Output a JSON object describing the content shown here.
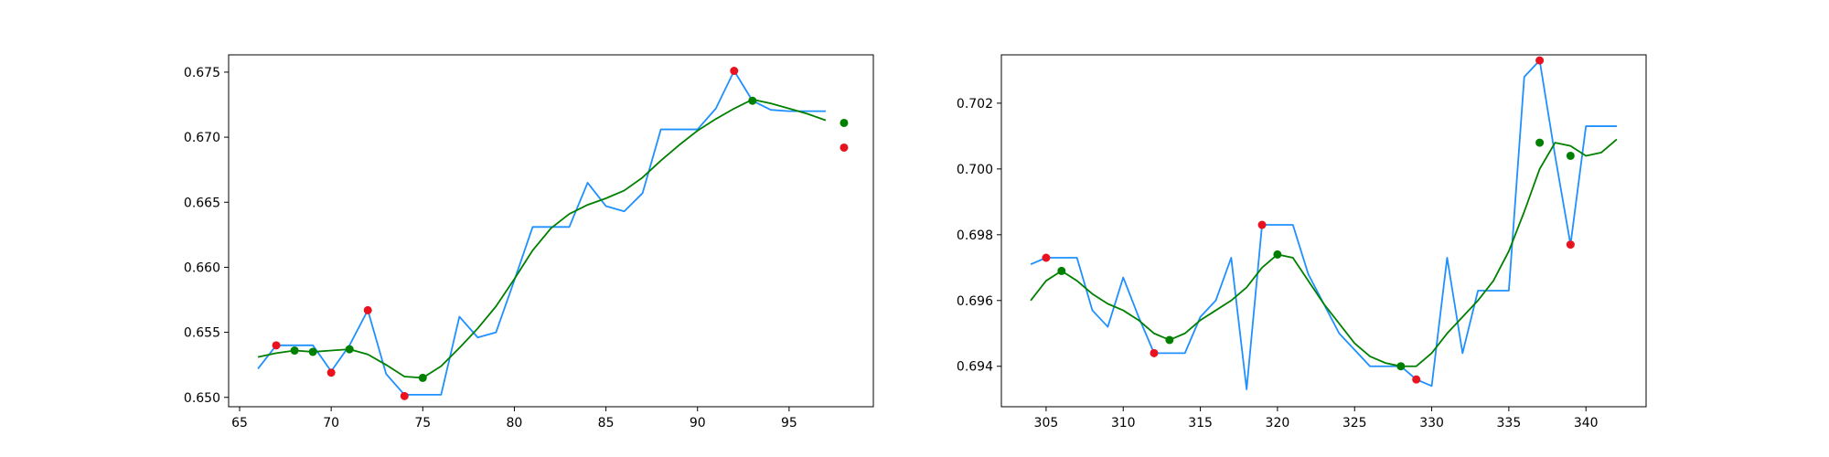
{
  "chart_data": [
    {
      "type": "line",
      "xlim": [
        64.4,
        99.6
      ],
      "ylim": [
        0.64928,
        0.67633
      ],
      "x_ticks": [
        65,
        70,
        75,
        80,
        85,
        90,
        95
      ],
      "y_ticks": [
        0.65,
        0.655,
        0.66,
        0.665,
        0.67,
        0.675
      ],
      "x_tick_labels": [
        "65",
        "70",
        "75",
        "80",
        "85",
        "90",
        "95"
      ],
      "y_tick_labels": [
        "0.650",
        "0.655",
        "0.660",
        "0.665",
        "0.670",
        "0.675"
      ],
      "grid": false,
      "series": [
        {
          "style": "line",
          "color": "#1e90ff",
          "x": [
            66,
            67,
            68,
            69,
            70,
            71,
            72,
            73,
            74,
            75,
            76,
            77,
            78,
            79,
            80,
            81,
            82,
            83,
            84,
            85,
            86,
            87,
            88,
            89,
            90,
            91,
            92,
            93,
            94,
            95,
            96,
            97
          ],
          "y": [
            0.6522,
            0.654,
            0.654,
            0.654,
            0.652,
            0.654,
            0.6567,
            0.6518,
            0.6502,
            0.6502,
            0.6502,
            0.6562,
            0.6546,
            0.655,
            0.659,
            0.6631,
            0.6631,
            0.6631,
            0.6665,
            0.6647,
            0.6643,
            0.6657,
            0.6706,
            0.6706,
            0.6706,
            0.6722,
            0.6751,
            0.6728,
            0.6721,
            0.672,
            0.672,
            0.672
          ]
        },
        {
          "style": "line",
          "color": "#008000",
          "x": [
            66,
            67,
            68,
            69,
            70,
            71,
            72,
            73,
            74,
            75,
            76,
            77,
            78,
            79,
            80,
            81,
            82,
            83,
            84,
            85,
            86,
            87,
            88,
            89,
            90,
            91,
            92,
            93,
            94,
            95,
            96,
            97
          ],
          "y": [
            0.6531,
            0.6534,
            0.6536,
            0.6535,
            0.6536,
            0.6537,
            0.6533,
            0.6525,
            0.6516,
            0.6515,
            0.6524,
            0.6538,
            0.6553,
            0.657,
            0.6591,
            0.6613,
            0.663,
            0.6641,
            0.6648,
            0.6653,
            0.6659,
            0.6669,
            0.6682,
            0.6694,
            0.6705,
            0.6714,
            0.6722,
            0.6729,
            0.6726,
            0.6722,
            0.6718,
            0.6713
          ]
        },
        {
          "style": "scatter",
          "color": "#e8131f",
          "x": [
            67,
            70,
            72,
            74,
            92,
            98
          ],
          "y": [
            0.654,
            0.6519,
            0.6567,
            0.6501,
            0.6751,
            0.6692
          ]
        },
        {
          "style": "scatter",
          "color": "#008000",
          "x": [
            68,
            69,
            71,
            75,
            93,
            98
          ],
          "y": [
            0.6536,
            0.6535,
            0.6537,
            0.6515,
            0.6728,
            0.6711
          ]
        }
      ]
    },
    {
      "type": "line",
      "xlim": [
        302.1,
        343.9
      ],
      "ylim": [
        0.69277,
        0.70347
      ],
      "x_ticks": [
        305,
        310,
        315,
        320,
        325,
        330,
        335,
        340
      ],
      "y_ticks": [
        0.694,
        0.696,
        0.698,
        0.7,
        0.702
      ],
      "x_tick_labels": [
        "305",
        "310",
        "315",
        "320",
        "325",
        "330",
        "335",
        "340"
      ],
      "y_tick_labels": [
        "0.694",
        "0.696",
        "0.698",
        "0.700",
        "0.702"
      ],
      "grid": false,
      "series": [
        {
          "style": "line",
          "color": "#1e90ff",
          "x": [
            304,
            305,
            306,
            307,
            308,
            309,
            310,
            311,
            312,
            313,
            314,
            315,
            316,
            317,
            318,
            319,
            320,
            321,
            322,
            323,
            324,
            325,
            326,
            327,
            328,
            329,
            330,
            331,
            332,
            333,
            334,
            335,
            336,
            337,
            338,
            339,
            340,
            341,
            342
          ],
          "y": [
            0.6971,
            0.6973,
            0.6973,
            0.6973,
            0.6957,
            0.6952,
            0.6967,
            0.6955,
            0.6944,
            0.6944,
            0.6944,
            0.6955,
            0.696,
            0.6973,
            0.6933,
            0.6983,
            0.6983,
            0.6983,
            0.6968,
            0.6959,
            0.695,
            0.6945,
            0.694,
            0.694,
            0.694,
            0.6936,
            0.6934,
            0.6973,
            0.6944,
            0.6963,
            0.6963,
            0.6963,
            0.7028,
            0.7033,
            0.7004,
            0.6977,
            0.7013,
            0.7013,
            0.7013
          ]
        },
        {
          "style": "line",
          "color": "#008000",
          "x": [
            304,
            305,
            306,
            307,
            308,
            309,
            310,
            311,
            312,
            313,
            314,
            315,
            316,
            317,
            318,
            319,
            320,
            321,
            322,
            323,
            324,
            325,
            326,
            327,
            328,
            329,
            330,
            331,
            332,
            333,
            334,
            335,
            336,
            337,
            338,
            339,
            340,
            341,
            342
          ],
          "y": [
            0.696,
            0.6966,
            0.6969,
            0.6966,
            0.6962,
            0.6959,
            0.6957,
            0.6954,
            0.695,
            0.6948,
            0.695,
            0.6954,
            0.6957,
            0.696,
            0.6964,
            0.697,
            0.6974,
            0.6973,
            0.6966,
            0.6959,
            0.6953,
            0.6947,
            0.6943,
            0.6941,
            0.694,
            0.694,
            0.6944,
            0.695,
            0.6955,
            0.696,
            0.6966,
            0.6975,
            0.6987,
            0.7,
            0.7008,
            0.7007,
            0.7004,
            0.7005,
            0.7009
          ]
        },
        {
          "style": "scatter",
          "color": "#e8131f",
          "x": [
            305,
            312,
            319,
            329,
            337,
            339
          ],
          "y": [
            0.6973,
            0.6944,
            0.6983,
            0.6936,
            0.7033,
            0.6977
          ]
        },
        {
          "style": "scatter",
          "color": "#008000",
          "x": [
            306,
            313,
            320,
            328,
            337,
            339
          ],
          "y": [
            0.6969,
            0.6948,
            0.6974,
            0.694,
            0.7008,
            0.7004
          ]
        }
      ]
    }
  ]
}
